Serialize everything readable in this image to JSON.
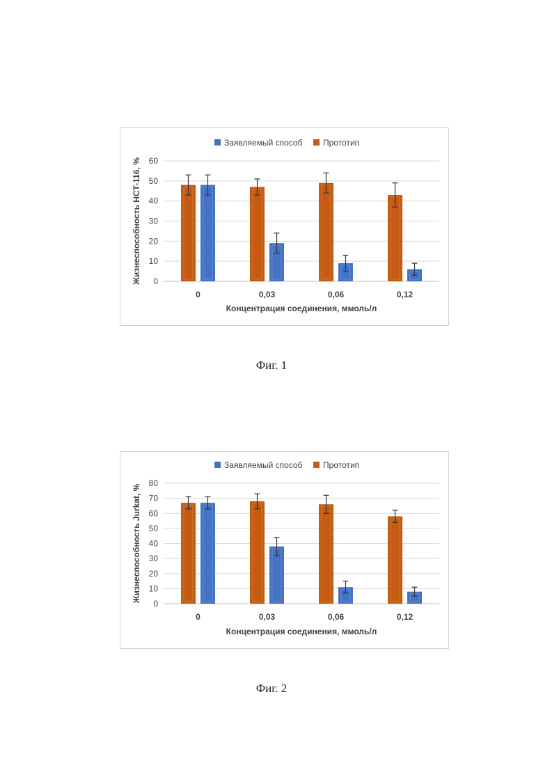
{
  "figures": [
    {
      "caption": "Фиг. 1"
    },
    {
      "caption": "Фиг. 2"
    }
  ],
  "colors": {
    "orange": "#C55A11",
    "blue": "#4472C4",
    "grid": "#d9d9d9",
    "errorbar": "#333333"
  },
  "chart_data": [
    {
      "type": "bar",
      "categories": [
        "0",
        "0,03",
        "0,06",
        "0,12"
      ],
      "series": [
        {
          "name": "Прототип",
          "values": [
            48,
            47,
            49,
            43
          ],
          "errors": [
            5,
            4,
            5,
            6
          ],
          "color": "#C55A11"
        },
        {
          "name": "Заявляемый способ",
          "values": [
            48,
            19,
            9,
            6
          ],
          "errors": [
            5,
            5,
            4,
            3
          ],
          "color": "#4472C4"
        }
      ],
      "legend_order": [
        "Заявляемый способ",
        "Прототип"
      ],
      "legend_position": "top",
      "xlabel": "Концентрация соединения, ммоль/л",
      "ylabel": "Жизнеспособность HCT-116, %",
      "ylim": [
        0,
        60
      ],
      "yticks": [
        0,
        10,
        20,
        30,
        40,
        50,
        60
      ],
      "grid": true
    },
    {
      "type": "bar",
      "categories": [
        "0",
        "0,03",
        "0,06",
        "0,12"
      ],
      "series": [
        {
          "name": "Прототип",
          "values": [
            67,
            68,
            66,
            58
          ],
          "errors": [
            4,
            5,
            6,
            4
          ],
          "color": "#C55A11"
        },
        {
          "name": "Заявляемый способ",
          "values": [
            67,
            38,
            11,
            8
          ],
          "errors": [
            4,
            6,
            4,
            3
          ],
          "color": "#4472C4"
        }
      ],
      "legend_order": [
        "Заявляемый способ",
        "Прототип"
      ],
      "legend_position": "top",
      "xlabel": "Концентрация соединения, ммоль/л",
      "ylabel": "Жизнеспособность Jurkat, %",
      "ylim": [
        0,
        80
      ],
      "yticks": [
        0,
        10,
        20,
        30,
        40,
        50,
        60,
        70,
        80
      ],
      "grid": true
    }
  ]
}
